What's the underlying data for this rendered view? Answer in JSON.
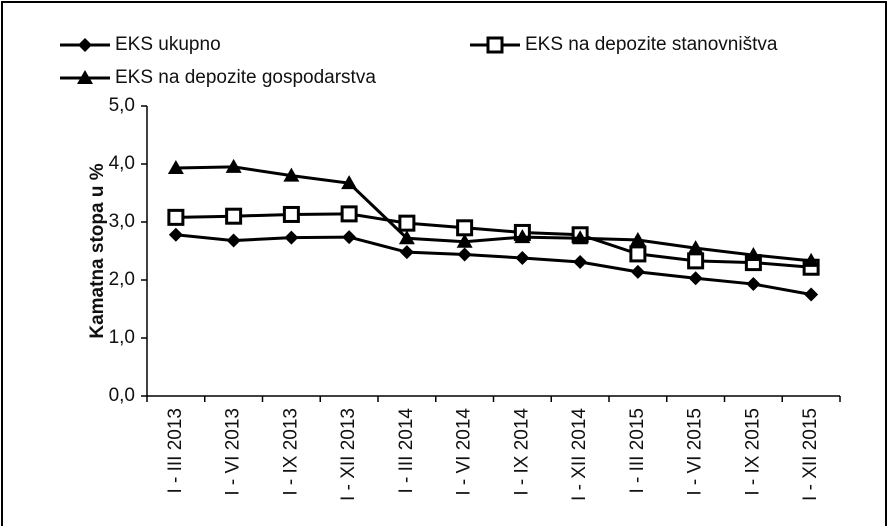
{
  "chart_data": {
    "type": "line",
    "categories": [
      "I - III 2013",
      "I - VI 2013",
      "I - IX 2013",
      "I - XII 2013",
      "I - III 2014",
      "I - VI 2014",
      "I - IX 2014",
      "I - XII 2014",
      "I - III 2015",
      "I - VI 2015",
      "I - IX 2015",
      "I - XII 2015"
    ],
    "y_label": "Kamatna stopa u %",
    "series": [
      {
        "name": "EKS ukupno",
        "color": "#000000",
        "marker": "diamond",
        "values": [
          2.78,
          2.68,
          2.73,
          2.74,
          2.48,
          2.44,
          2.38,
          2.31,
          2.14,
          2.03,
          1.93,
          1.75
        ]
      },
      {
        "name": "EKS na depozite stanovništva",
        "color": "#000000",
        "marker": "square",
        "values": [
          3.08,
          3.1,
          3.13,
          3.14,
          2.98,
          2.9,
          2.82,
          2.78,
          2.45,
          2.33,
          2.3,
          2.22
        ]
      },
      {
        "name": "EKS na depozite gospodarstva",
        "color": "#000000",
        "marker": "triangle",
        "values": [
          3.93,
          3.95,
          3.8,
          3.67,
          2.72,
          2.66,
          2.74,
          2.72,
          2.69,
          2.55,
          2.43,
          2.33
        ]
      }
    ],
    "ylim": [
      0,
      5
    ],
    "yticks": [
      {
        "value": 0,
        "label": "0,0"
      },
      {
        "value": 1,
        "label": "1,0"
      },
      {
        "value": 2,
        "label": "2,0"
      },
      {
        "value": 3,
        "label": "3,0"
      },
      {
        "value": 4,
        "label": "4,0"
      },
      {
        "value": 5,
        "label": "5,0"
      }
    ],
    "grid": false
  }
}
